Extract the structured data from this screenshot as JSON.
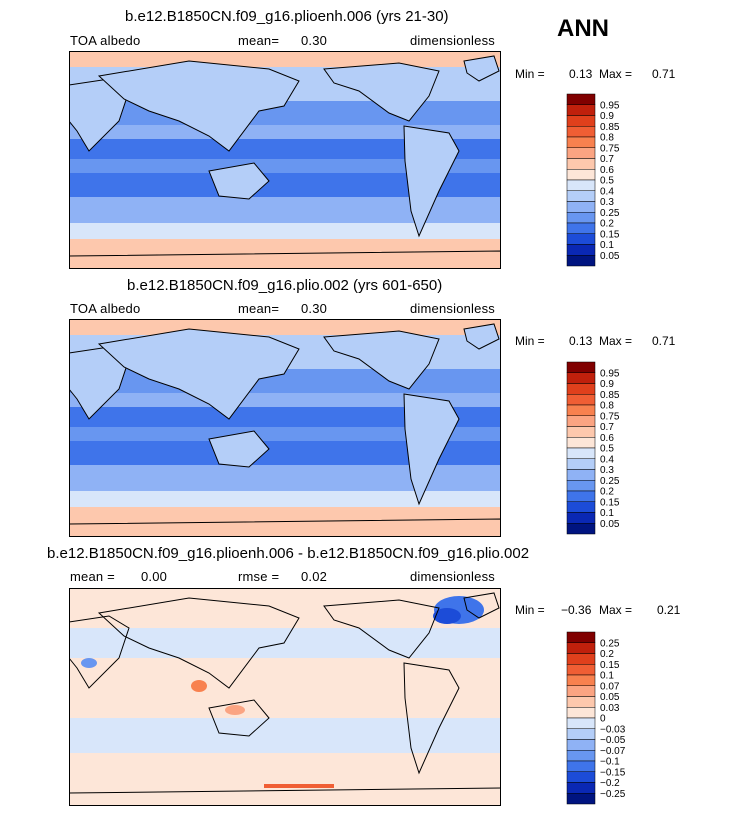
{
  "season": "ANN",
  "colors": {
    "ocean_main": "#5b8ef0",
    "land_main": "#9fc0f3",
    "ice": "#f5bba5"
  },
  "chart_data": [
    {
      "type": "heatmap",
      "title": "b.e12.B1850CN.f09_g16.plioenh.006 (yrs 21-30)",
      "left_label": "TOA albedo",
      "center_label": "mean=",
      "center_value": "0.30",
      "right_label": "dimensionless",
      "min_label": "Min =",
      "min_value": "0.13",
      "max_label": "Max =",
      "max_value": "0.71",
      "colorbar": {
        "levels": [
          "0.95",
          "0.9",
          "0.85",
          "0.8",
          "0.75",
          "0.7",
          "0.6",
          "0.5",
          "0.4",
          "0.3",
          "0.25",
          "0.2",
          "0.15",
          "0.1",
          "0.05"
        ],
        "colors": [
          "#800000",
          "#c0200c",
          "#e0401c",
          "#f05e34",
          "#f8814f",
          "#fba482",
          "#fdc8ad",
          "#fde6d8",
          "#d8e6fa",
          "#b4cef8",
          "#8fb2f5",
          "#6896f0",
          "#3f74ea",
          "#1c4cd8",
          "#0a28b4",
          "#001480"
        ]
      }
    },
    {
      "type": "heatmap",
      "title": "b.e12.B1850CN.f09_g16.plio.002 (yrs 601-650)",
      "left_label": "TOA albedo",
      "center_label": "mean=",
      "center_value": "0.30",
      "right_label": "dimensionless",
      "min_label": "Min =",
      "min_value": "0.13",
      "max_label": "Max =",
      "max_value": "0.71",
      "colorbar": {
        "levels": [
          "0.95",
          "0.9",
          "0.85",
          "0.8",
          "0.75",
          "0.7",
          "0.6",
          "0.5",
          "0.4",
          "0.3",
          "0.25",
          "0.2",
          "0.15",
          "0.1",
          "0.05"
        ],
        "colors": [
          "#800000",
          "#c0200c",
          "#e0401c",
          "#f05e34",
          "#f8814f",
          "#fba482",
          "#fdc8ad",
          "#fde6d8",
          "#d8e6fa",
          "#b4cef8",
          "#8fb2f5",
          "#6896f0",
          "#3f74ea",
          "#1c4cd8",
          "#0a28b4",
          "#001480"
        ]
      }
    },
    {
      "type": "heatmap",
      "title": "b.e12.B1850CN.f09_g16.plioenh.006 - b.e12.B1850CN.f09_g16.plio.002",
      "left_label": "mean =",
      "left_value": "0.00",
      "center_label": "rmse =",
      "center_value": "0.02",
      "right_label": "dimensionless",
      "min_label": "Min =",
      "min_value": "−0.36",
      "max_label": "Max =",
      "max_value": "0.21",
      "colorbar": {
        "levels": [
          "0.25",
          "0.2",
          "0.15",
          "0.1",
          "0.07",
          "0.05",
          "0.03",
          "0",
          "−0.03",
          "−0.05",
          "−0.07",
          "−0.1",
          "−0.15",
          "−0.2",
          "−0.25"
        ],
        "colors": [
          "#800000",
          "#c0200c",
          "#e0401c",
          "#f05e34",
          "#f8814f",
          "#fba482",
          "#fdc8ad",
          "#fde6d8",
          "#d8e6fa",
          "#b4cef8",
          "#8fb2f5",
          "#6896f0",
          "#3f74ea",
          "#1c4cd8",
          "#0a28b4",
          "#001480"
        ]
      }
    }
  ]
}
